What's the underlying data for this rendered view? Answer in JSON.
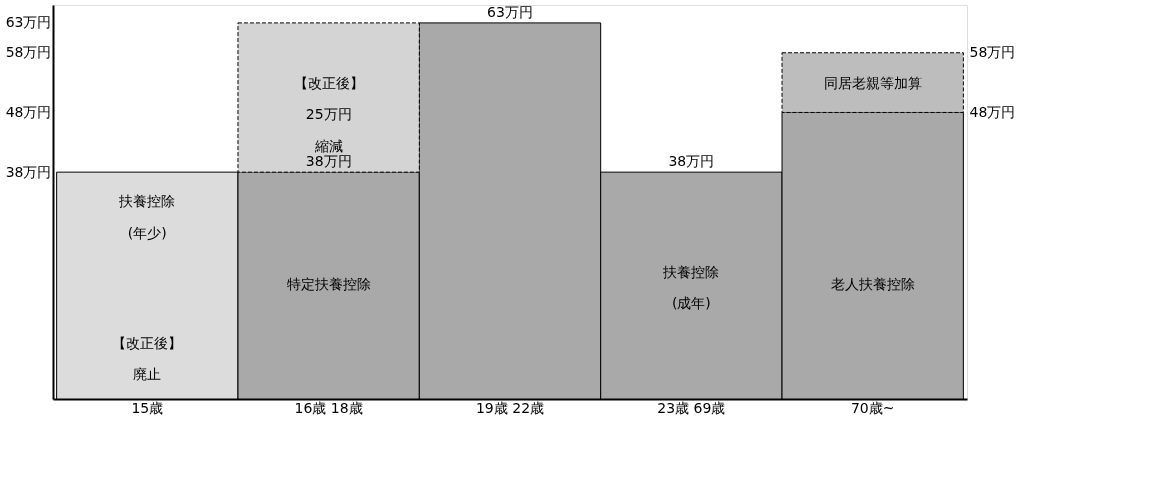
{
  "chart_data": {
    "type": "bar",
    "stacked": true,
    "categories": [
      "15歳",
      "16歳 18歳",
      "19歳 22歳",
      "23歳 69歳",
      "70歳~"
    ],
    "series": [
      {
        "colors": [
          "#dcdcdc",
          "#a9a9a9",
          "#a9a9a9",
          "#a9a9a9",
          "#a9a9a9"
        ],
        "values": [
          38,
          38,
          63,
          38,
          48
        ],
        "value_labels": [
          null,
          "38万円",
          "63万円",
          "38万円",
          null
        ]
      },
      {
        "colors": [
          "#dcdcdc",
          "#d4d4d4",
          "#a9a9a9",
          "#a9a9a9",
          "#bdbdbd"
        ],
        "values": [
          null,
          25,
          null,
          null,
          10
        ]
      }
    ],
    "ylim": [
      0,
      66
    ],
    "yticks": [
      {
        "value": 38,
        "label": "38万円"
      },
      {
        "value": 48,
        "label": "48万円"
      },
      {
        "value": 58,
        "label": "58万円"
      },
      {
        "value": 63,
        "label": "63万円"
      }
    ],
    "y2lim": [
      0,
      66
    ],
    "y2ticks": [
      {
        "value": 48,
        "label": "48万円"
      },
      {
        "value": 58,
        "label": "58万円"
      }
    ],
    "grid": false,
    "annotations": [
      "扶養控除",
      "(年少)",
      "【改正後】",
      "廃止",
      "【改正後】",
      "25万円",
      "縮減",
      "特定扶養控除",
      "扶養控除",
      "(成年)",
      "老人扶養控除",
      "同居老親等加算"
    ]
  }
}
